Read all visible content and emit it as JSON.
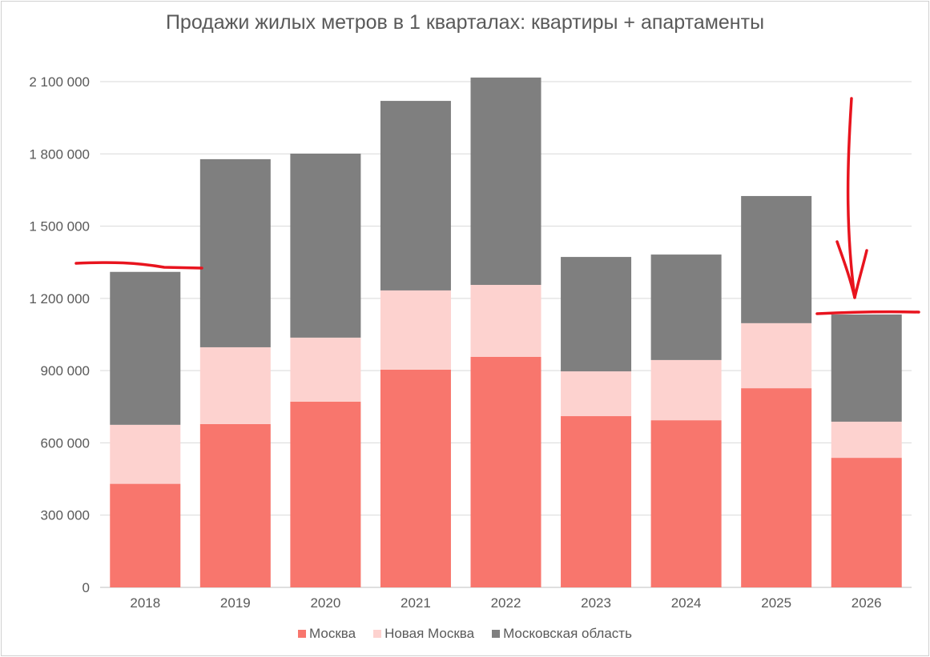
{
  "chart_data": {
    "type": "bar",
    "stacked": true,
    "title": "Продажи жилых метров в 1 кварталах: квартиры + апартаменты",
    "xlabel": "",
    "ylabel": "",
    "ylim": [
      0,
      2100000
    ],
    "yticks": [
      0,
      300000,
      600000,
      900000,
      1200000,
      1500000,
      1800000,
      2100000
    ],
    "ytick_labels": [
      "0",
      "300 000",
      "600 000",
      "900 000",
      "1 200 000",
      "1 500 000",
      "1 800 000",
      "2 100 000"
    ],
    "grid": true,
    "legend_position": "bottom",
    "categories": [
      "2018",
      "2019",
      "2020",
      "2021",
      "2022",
      "2023",
      "2024",
      "2025",
      "2026"
    ],
    "series": [
      {
        "name": "Москва",
        "color": "#f8766d",
        "values": [
          430000,
          678000,
          771000,
          904000,
          957000,
          711000,
          694000,
          827000,
          538000
        ]
      },
      {
        "name": "Новая Москва",
        "color": "#fdd2cf",
        "values": [
          245000,
          319000,
          266000,
          329000,
          299000,
          186000,
          250000,
          270000,
          150000
        ]
      },
      {
        "name": "Московская область",
        "color": "#7f7f7f",
        "values": [
          635000,
          781000,
          764000,
          787000,
          861000,
          475000,
          438000,
          528000,
          445000
        ]
      }
    ],
    "annotation_color": "#e8141e"
  }
}
